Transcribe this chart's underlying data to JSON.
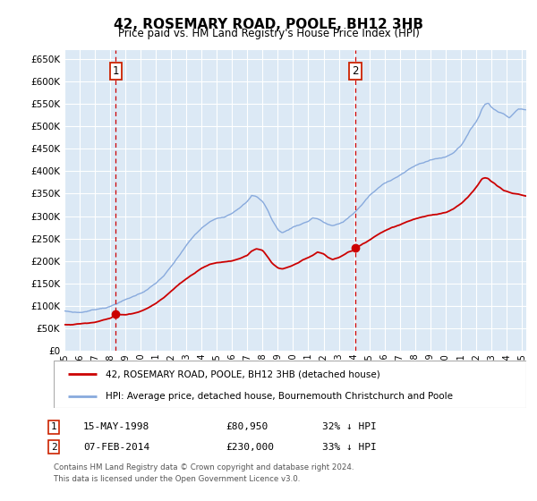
{
  "title": "42, ROSEMARY ROAD, POOLE, BH12 3HB",
  "subtitle": "Price paid vs. HM Land Registry's House Price Index (HPI)",
  "legend_line1": "42, ROSEMARY ROAD, POOLE, BH12 3HB (detached house)",
  "legend_line2": "HPI: Average price, detached house, Bournemouth Christchurch and Poole",
  "sale1_date": "15-MAY-1998",
  "sale1_price": "£80,950",
  "sale1_hpi": "32% ↓ HPI",
  "sale2_date": "07-FEB-2014",
  "sale2_price": "£230,000",
  "sale2_hpi": "33% ↓ HPI",
  "footnote": "Contains HM Land Registry data © Crown copyright and database right 2024.\nThis data is licensed under the Open Government Licence v3.0.",
  "bg_color": "#dce9f5",
  "grid_color": "#ffffff",
  "red_color": "#cc0000",
  "blue_color": "#88aadd",
  "marker_color": "#cc0000",
  "ylim": [
    0,
    670000
  ],
  "yticks": [
    0,
    50000,
    100000,
    150000,
    200000,
    250000,
    300000,
    350000,
    400000,
    450000,
    500000,
    550000,
    600000,
    650000
  ],
  "xlim_start": 1995.0,
  "xlim_end": 2025.3,
  "xtick_years": [
    1995,
    1996,
    1997,
    1998,
    1999,
    2000,
    2001,
    2002,
    2003,
    2004,
    2005,
    2006,
    2007,
    2008,
    2009,
    2010,
    2011,
    2012,
    2013,
    2014,
    2015,
    2016,
    2017,
    2018,
    2019,
    2020,
    2021,
    2022,
    2023,
    2024,
    2025
  ],
  "sale1_x": 1998.37,
  "sale1_y": 80950,
  "sale2_x": 2014.09,
  "sale2_y": 230000
}
